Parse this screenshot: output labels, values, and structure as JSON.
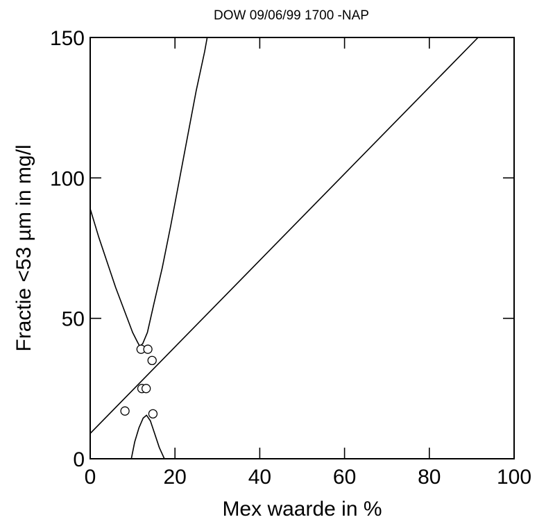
{
  "chart_data": {
    "type": "scatter",
    "title": "DOW 09/06/99 1700 -NAP",
    "xlabel": "Mex waarde in %",
    "ylabel": "Fractie <53 µm in mg/l",
    "xlim": [
      0,
      100
    ],
    "ylim": [
      0,
      150
    ],
    "x_ticks": [
      "0",
      "20",
      "40",
      "60",
      "80",
      "100"
    ],
    "y_ticks": [
      "0",
      "50",
      "100",
      "150"
    ],
    "grid": false,
    "points": [
      {
        "x": 8.2,
        "y": 17
      },
      {
        "x": 12.0,
        "y": 39
      },
      {
        "x": 13.6,
        "y": 39
      },
      {
        "x": 14.6,
        "y": 35
      },
      {
        "x": 12.2,
        "y": 25
      },
      {
        "x": 13.2,
        "y": 25
      },
      {
        "x": 14.8,
        "y": 16
      }
    ],
    "regression_line": {
      "x": [
        0,
        91.5
      ],
      "y": [
        9,
        150
      ]
    },
    "upper_confidence_band": {
      "x": [
        0,
        2,
        4,
        6,
        8,
        10,
        11,
        11.7,
        12.4,
        13.5,
        15,
        17,
        19,
        21,
        23,
        25,
        27,
        27.6
      ],
      "y": [
        89,
        79,
        70,
        61,
        53,
        45,
        42,
        40,
        41,
        45,
        55,
        68,
        83,
        99,
        115,
        131,
        145,
        150
      ]
    },
    "lower_confidence_band": {
      "x": [
        9.7,
        10.5,
        11.5,
        12.5,
        13.3,
        14.2,
        15.2,
        16.3,
        17.5
      ],
      "y": [
        0,
        6,
        11,
        14.5,
        15.5,
        13.5,
        9,
        4,
        0
      ]
    }
  }
}
